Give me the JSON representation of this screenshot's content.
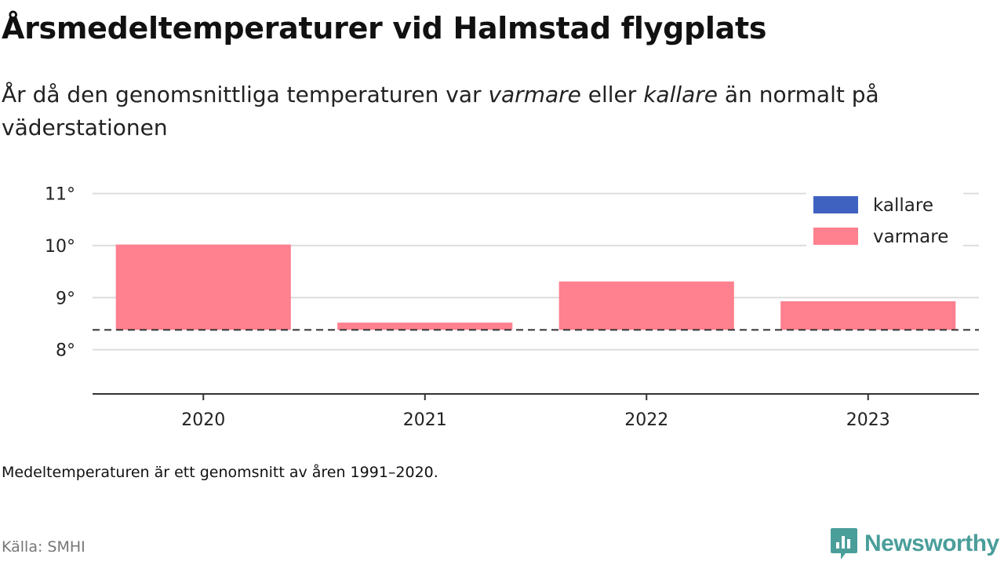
{
  "title": "Årsmedeltemperaturer vid Halmstad flygplats",
  "subtitle": {
    "part1": "År då den genomsnittliga temperaturen var ",
    "warm_word": "varmare",
    "part2": " eller ",
    "cold_word": "kallare",
    "part3": " än normalt på väderstationen"
  },
  "chart_data": {
    "type": "bar",
    "categories": [
      "2020",
      "2021",
      "2022",
      "2023"
    ],
    "values": [
      10.02,
      8.52,
      9.31,
      8.93
    ],
    "baseline": 8.38,
    "ylim": [
      7.15,
      11.25
    ],
    "yticks": [
      8,
      9,
      10,
      11
    ],
    "ytick_labels": [
      "8°",
      "9°",
      "10°",
      "11°"
    ],
    "grid": true,
    "legend_position": "top-right",
    "legend": [
      {
        "label": "kallare",
        "color": "#3f62c1"
      },
      {
        "label": "varmare",
        "color": "#ff808f"
      }
    ],
    "colors": {
      "warm": "#ff808f",
      "cold": "#3f62c1",
      "baseline": "#333333",
      "grid": "#dddddd",
      "axis": "#333333"
    }
  },
  "footnote": "Medeltemperaturen är ett genomsnitt av åren 1991–2020.",
  "source": "Källa: SMHI",
  "brand": {
    "name": "Newsworthy",
    "icon": "newsworthy-logo-icon",
    "color": "#4a9e9a"
  }
}
